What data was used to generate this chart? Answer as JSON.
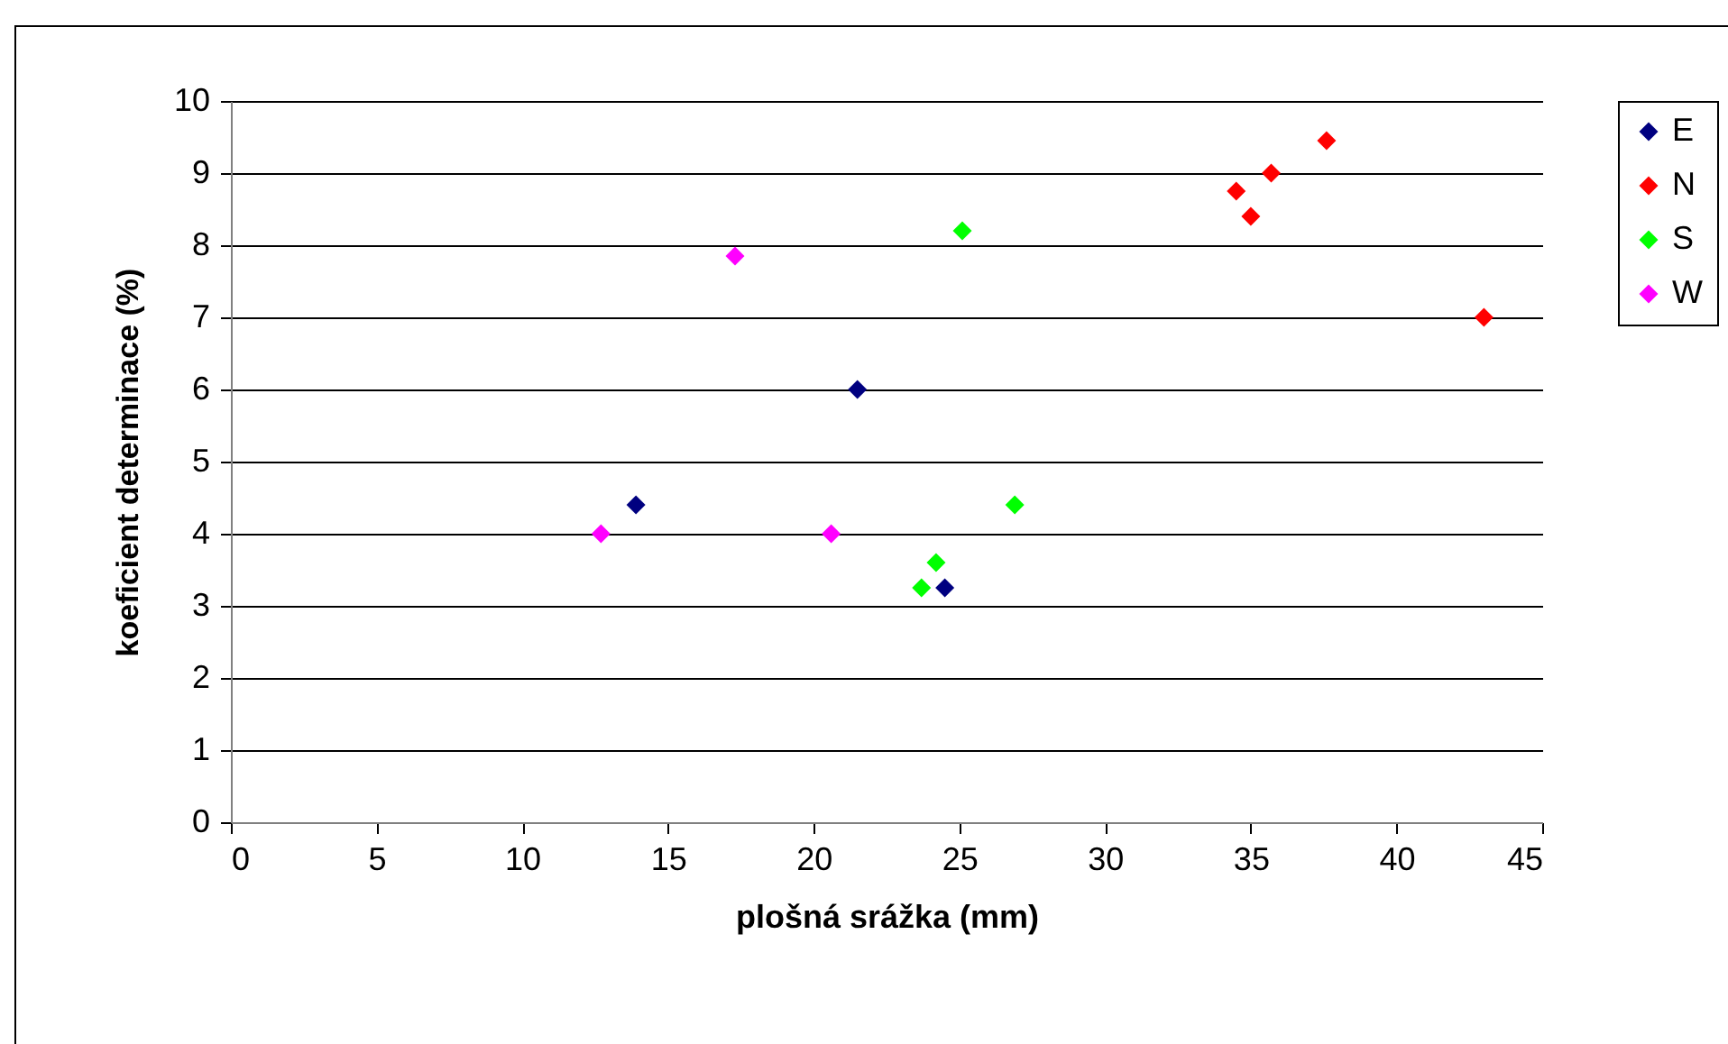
{
  "chart_data": {
    "type": "scatter",
    "xlabel": "plošná srážka (mm)",
    "ylabel": "koeficient determinace (%)",
    "xlim": [
      0,
      45
    ],
    "xticks": [
      0,
      5,
      10,
      15,
      20,
      25,
      30,
      35,
      40,
      45
    ],
    "ylim": [
      0,
      10
    ],
    "yticks": [
      0,
      1,
      2,
      3,
      4,
      5,
      6,
      7,
      8,
      9,
      10
    ],
    "grid": "y",
    "legend": "right",
    "marker": "diamond",
    "series": [
      {
        "name": "E",
        "color": "#000080",
        "x": [
          13.9,
          21.5,
          24.5
        ],
        "values": [
          4.4,
          6.0,
          3.25
        ]
      },
      {
        "name": "N",
        "color": "#ff0000",
        "x": [
          34.5,
          35.0,
          35.7,
          37.6,
          43.0
        ],
        "values": [
          8.75,
          8.4,
          9.0,
          9.45,
          7.0
        ]
      },
      {
        "name": "S",
        "color": "#00ff00",
        "x": [
          25.1,
          26.9,
          24.2,
          23.7
        ],
        "values": [
          8.2,
          4.4,
          3.6,
          3.25
        ]
      },
      {
        "name": "W",
        "color": "#ff00ff",
        "x": [
          17.3,
          12.7,
          20.6
        ],
        "values": [
          7.85,
          4.0,
          4.0
        ]
      }
    ]
  }
}
